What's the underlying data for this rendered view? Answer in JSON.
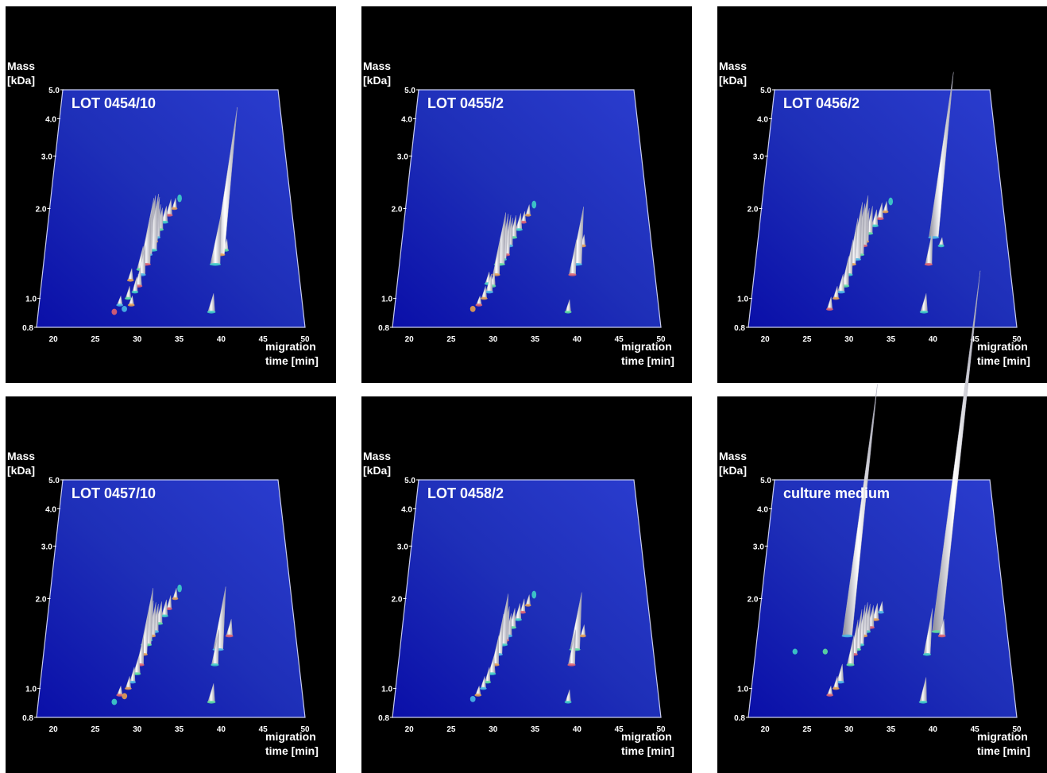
{
  "colors": {
    "background": "#000000",
    "plane_top": "#1e2fb8",
    "plane_bottom": "#0a0fa8",
    "peak": "#e8e8ee"
  },
  "axes": {
    "ylabel": "Mass\n[kDa]",
    "xlabel": "migration\ntime [min]",
    "yticks": [
      "5.0",
      "4.0",
      "3.0",
      "2.0",
      "1.0",
      "0.8"
    ],
    "xticks": [
      "20",
      "25",
      "30",
      "35",
      "40",
      "45",
      "50"
    ]
  },
  "chart_data": [
    {
      "type": "scatter",
      "title": "LOT 0454/10",
      "xlabel": "migration time [min]",
      "ylabel": "Mass [kDa]",
      "xlim": [
        18,
        50
      ],
      "ylim": [
        0.8,
        5.0
      ],
      "y_scale": "log",
      "series": [
        {
          "name": "",
          "points": [
            [
              27.2,
              0.88,
              0.1
            ],
            [
              27.8,
              0.95,
              0.15
            ],
            [
              28.4,
              0.9,
              0.1
            ],
            [
              28.8,
              1.0,
              0.2
            ],
            [
              29.2,
              0.95,
              0.15
            ],
            [
              29.6,
              1.05,
              0.25
            ],
            [
              30.0,
              1.1,
              0.3
            ],
            [
              30.4,
              1.2,
              0.5
            ],
            [
              30.8,
              1.3,
              0.9
            ],
            [
              31.0,
              1.4,
              1.0
            ],
            [
              31.3,
              1.5,
              0.9
            ],
            [
              31.6,
              1.45,
              1.0
            ],
            [
              31.9,
              1.55,
              0.8
            ],
            [
              32.2,
              1.6,
              0.6
            ],
            [
              32.6,
              1.7,
              0.4
            ],
            [
              33.2,
              1.8,
              0.3
            ],
            [
              33.8,
              1.9,
              0.3
            ],
            [
              34.5,
              2.0,
              0.2
            ],
            [
              35.2,
              2.1,
              0.15
            ],
            [
              29.0,
              1.15,
              0.2
            ],
            [
              30.2,
              1.25,
              0.4
            ],
            [
              38.9,
              0.9,
              0.3
            ],
            [
              39.6,
              1.3,
              0.9
            ],
            [
              40.2,
              1.4,
              2.6
            ],
            [
              41.0,
              1.45,
              0.2
            ]
          ]
        }
      ]
    },
    {
      "type": "scatter",
      "title": "LOT 0455/2",
      "xlabel": "migration time [min]",
      "ylabel": "Mass [kDa]",
      "xlim": [
        18,
        50
      ],
      "ylim": [
        0.8,
        5.0
      ],
      "y_scale": "log",
      "series": [
        {
          "name": "",
          "points": [
            [
              27.5,
              0.9,
              0.1
            ],
            [
              28.2,
              0.95,
              0.15
            ],
            [
              28.8,
              1.0,
              0.2
            ],
            [
              29.4,
              1.05,
              0.3
            ],
            [
              29.8,
              1.1,
              0.25
            ],
            [
              30.2,
              1.2,
              0.6
            ],
            [
              30.6,
              1.3,
              0.9
            ],
            [
              31.0,
              1.35,
              0.8
            ],
            [
              31.4,
              1.4,
              0.7
            ],
            [
              31.8,
              1.5,
              0.5
            ],
            [
              32.3,
              1.6,
              0.4
            ],
            [
              33.0,
              1.7,
              0.3
            ],
            [
              33.6,
              1.8,
              0.2
            ],
            [
              34.2,
              1.9,
              0.2
            ],
            [
              35.0,
              2.0,
              0.15
            ],
            [
              29.2,
              1.12,
              0.2
            ],
            [
              39.0,
              0.9,
              0.2
            ],
            [
              39.7,
              1.2,
              0.6
            ],
            [
              40.3,
              1.3,
              1.0
            ],
            [
              41.2,
              1.5,
              0.2
            ]
          ]
        }
      ]
    },
    {
      "type": "scatter",
      "title": "LOT 0456/2",
      "xlabel": "migration time [min]",
      "ylabel": "Mass [kDa]",
      "xlim": [
        18,
        50
      ],
      "ylim": [
        0.8,
        5.0
      ],
      "y_scale": "log",
      "series": [
        {
          "name": "",
          "points": [
            [
              27.6,
              0.92,
              0.2
            ],
            [
              28.3,
              1.0,
              0.2
            ],
            [
              28.9,
              1.05,
              0.3
            ],
            [
              29.4,
              1.1,
              0.5
            ],
            [
              29.8,
              1.2,
              0.6
            ],
            [
              30.2,
              1.3,
              0.8
            ],
            [
              30.6,
              1.35,
              1.0
            ],
            [
              31.0,
              1.4,
              0.9
            ],
            [
              31.4,
              1.5,
              0.9
            ],
            [
              31.8,
              1.55,
              0.6
            ],
            [
              32.3,
              1.65,
              0.5
            ],
            [
              33.0,
              1.75,
              0.3
            ],
            [
              33.7,
              1.85,
              0.3
            ],
            [
              34.4,
              1.95,
              0.2
            ],
            [
              35.1,
              2.05,
              0.15
            ],
            [
              39.0,
              0.9,
              0.3
            ],
            [
              39.8,
              1.3,
              0.6
            ],
            [
              40.6,
              1.6,
              3.0
            ],
            [
              41.5,
              1.5,
              0.15
            ]
          ]
        }
      ]
    },
    {
      "type": "scatter",
      "title": "LOT 0457/10",
      "xlabel": "migration time [min]",
      "ylabel": "Mass [kDa]",
      "xlim": [
        18,
        50
      ],
      "ylim": [
        0.8,
        5.0
      ],
      "y_scale": "log",
      "series": [
        {
          "name": "",
          "points": [
            [
              27.2,
              0.88,
              0.1
            ],
            [
              27.8,
              0.95,
              0.15
            ],
            [
              28.4,
              0.92,
              0.1
            ],
            [
              28.8,
              1.0,
              0.2
            ],
            [
              29.3,
              1.05,
              0.25
            ],
            [
              29.8,
              1.12,
              0.3
            ],
            [
              30.2,
              1.2,
              0.5
            ],
            [
              30.6,
              1.3,
              0.8
            ],
            [
              30.9,
              1.4,
              1.0
            ],
            [
              31.2,
              1.45,
              0.7
            ],
            [
              31.6,
              1.5,
              0.6
            ],
            [
              32.0,
              1.55,
              0.5
            ],
            [
              32.5,
              1.65,
              0.4
            ],
            [
              33.2,
              1.75,
              0.3
            ],
            [
              33.8,
              1.85,
              0.25
            ],
            [
              34.6,
              2.0,
              0.2
            ],
            [
              35.2,
              2.1,
              0.15
            ],
            [
              38.9,
              0.9,
              0.3
            ],
            [
              39.5,
              1.2,
              0.6
            ],
            [
              40.0,
              1.35,
              1.1
            ],
            [
              41.5,
              1.5,
              0.3
            ]
          ]
        }
      ]
    },
    {
      "type": "scatter",
      "title": "LOT 0458/2",
      "xlabel": "migration time [min]",
      "ylabel": "Mass [kDa]",
      "xlim": [
        18,
        50
      ],
      "ylim": [
        0.8,
        5.0
      ],
      "y_scale": "log",
      "series": [
        {
          "name": "",
          "points": [
            [
              27.5,
              0.9,
              0.1
            ],
            [
              28.1,
              0.95,
              0.15
            ],
            [
              28.7,
              1.0,
              0.2
            ],
            [
              29.2,
              1.05,
              0.25
            ],
            [
              29.7,
              1.12,
              0.3
            ],
            [
              30.1,
              1.2,
              0.5
            ],
            [
              30.5,
              1.3,
              0.7
            ],
            [
              30.9,
              1.4,
              0.9
            ],
            [
              31.3,
              1.45,
              0.6
            ],
            [
              31.7,
              1.5,
              0.4
            ],
            [
              32.2,
              1.6,
              0.35
            ],
            [
              32.9,
              1.7,
              0.3
            ],
            [
              33.5,
              1.8,
              0.25
            ],
            [
              34.2,
              1.9,
              0.2
            ],
            [
              35.0,
              2.0,
              0.15
            ],
            [
              39.0,
              0.9,
              0.2
            ],
            [
              39.6,
              1.2,
              0.6
            ],
            [
              40.1,
              1.35,
              1.0
            ],
            [
              41.2,
              1.5,
              0.2
            ]
          ]
        }
      ]
    },
    {
      "type": "scatter",
      "title": "culture medium",
      "xlabel": "migration time [min]",
      "ylabel": "Mass [kDa]",
      "xlim": [
        18,
        50
      ],
      "ylim": [
        0.8,
        5.0
      ],
      "y_scale": "log",
      "series": [
        {
          "name": "",
          "points": [
            [
              23.0,
              1.3,
              0.1
            ],
            [
              26.8,
              1.3,
              0.1
            ],
            [
              27.6,
              0.95,
              0.15
            ],
            [
              28.3,
              1.0,
              0.2
            ],
            [
              28.8,
              1.05,
              0.3
            ],
            [
              29.5,
              1.5,
              4.5
            ],
            [
              30.0,
              1.2,
              0.5
            ],
            [
              30.4,
              1.3,
              0.6
            ],
            [
              30.8,
              1.35,
              0.7
            ],
            [
              31.2,
              1.4,
              0.7
            ],
            [
              31.6,
              1.5,
              0.6
            ],
            [
              32.0,
              1.55,
              0.5
            ],
            [
              32.5,
              1.6,
              0.4
            ],
            [
              33.1,
              1.7,
              0.3
            ],
            [
              33.8,
              1.8,
              0.2
            ],
            [
              38.9,
              0.9,
              0.4
            ],
            [
              39.6,
              1.3,
              0.8
            ],
            [
              41.0,
              1.55,
              6.5
            ],
            [
              41.6,
              1.5,
              0.3
            ]
          ]
        }
      ]
    }
  ]
}
